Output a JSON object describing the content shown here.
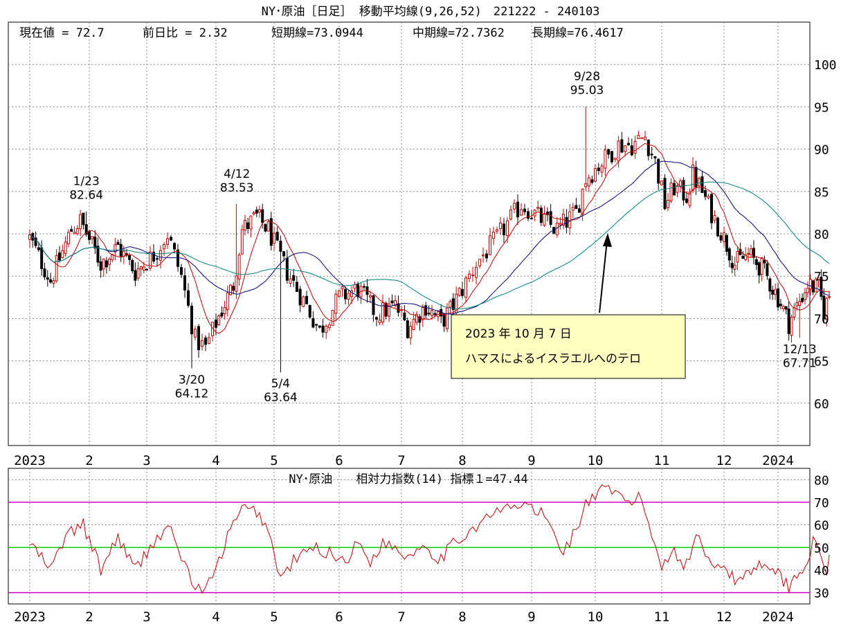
{
  "chart_data": [
    {
      "type": "candlestick",
      "title": "NY･原油［日足］ 移動平均線(9,26,52)　221222 - 240103",
      "info": {
        "current": "現在値 = 72.7",
        "change": "前日比 = 2.32",
        "short": "短期線=73.0944",
        "mid": "中期線=72.7362",
        "long": "長期線=76.4617"
      },
      "y_ticks": [
        100,
        95,
        90,
        85,
        80,
        75,
        70,
        65,
        60
      ],
      "ylim": [
        55,
        105
      ],
      "x_labels": [
        "2023",
        "2",
        "3",
        "4",
        "5",
        "6",
        "7",
        "8",
        "9",
        "10",
        "11",
        "12",
        "2024"
      ],
      "price_anchors": [
        {
          "month": 0.0,
          "close": 79.5
        },
        {
          "month": 0.35,
          "close": 74.5
        },
        {
          "month": 0.7,
          "close": 80.5
        },
        {
          "month": 0.85,
          "close": 81.5
        },
        {
          "month": 1.2,
          "close": 76.5
        },
        {
          "month": 1.5,
          "close": 78.5
        },
        {
          "month": 1.8,
          "close": 75.5
        },
        {
          "month": 2.1,
          "close": 77.5
        },
        {
          "month": 2.3,
          "close": 80.0
        },
        {
          "month": 2.5,
          "close": 75.0
        },
        {
          "month": 2.7,
          "close": 67.5
        },
        {
          "month": 2.85,
          "close": 66.5
        },
        {
          "month": 3.0,
          "close": 69.5
        },
        {
          "month": 3.3,
          "close": 74.0
        },
        {
          "month": 3.45,
          "close": 80.5
        },
        {
          "month": 3.7,
          "close": 82.0
        },
        {
          "month": 3.9,
          "close": 80.5
        },
        {
          "month": 4.2,
          "close": 75.5
        },
        {
          "month": 4.5,
          "close": 71.5
        },
        {
          "month": 4.7,
          "close": 68.5
        },
        {
          "month": 5.0,
          "close": 72.5
        },
        {
          "month": 5.3,
          "close": 73.5
        },
        {
          "month": 5.6,
          "close": 70.5
        },
        {
          "month": 5.9,
          "close": 71.5
        },
        {
          "month": 6.1,
          "close": 69.0
        },
        {
          "month": 6.4,
          "close": 71.5
        },
        {
          "month": 6.65,
          "close": 69.5
        },
        {
          "month": 6.8,
          "close": 71.0
        },
        {
          "month": 7.0,
          "close": 73.5
        },
        {
          "month": 7.2,
          "close": 76.5
        },
        {
          "month": 7.5,
          "close": 79.5
        },
        {
          "month": 7.85,
          "close": 83.5
        },
        {
          "month": 8.1,
          "close": 82.0
        },
        {
          "month": 8.4,
          "close": 80.5
        },
        {
          "month": 8.7,
          "close": 82.5
        },
        {
          "month": 8.85,
          "close": 86.5
        },
        {
          "month": 9.1,
          "close": 88.5
        },
        {
          "month": 9.35,
          "close": 90.5
        },
        {
          "month": 9.55,
          "close": 90.5
        },
        {
          "month": 9.75,
          "close": 91.5
        },
        {
          "month": 9.9,
          "close": 88.5
        },
        {
          "month": 10.05,
          "close": 83.5
        },
        {
          "month": 10.2,
          "close": 85.5
        },
        {
          "month": 10.4,
          "close": 84.5
        },
        {
          "month": 10.5,
          "close": 87.0
        },
        {
          "month": 10.65,
          "close": 85.0
        },
        {
          "month": 10.8,
          "close": 82.5
        },
        {
          "month": 11.0,
          "close": 79.5
        },
        {
          "month": 11.2,
          "close": 76.5
        },
        {
          "month": 11.45,
          "close": 77.5
        },
        {
          "month": 11.7,
          "close": 76.0
        },
        {
          "month": 12.0,
          "close": 72.5
        },
        {
          "month": 12.2,
          "close": 69.5
        },
        {
          "month": 12.35,
          "close": 71.5
        },
        {
          "month": 12.55,
          "close": 74.0
        },
        {
          "month": 12.75,
          "close": 73.5
        },
        {
          "month": 12.85,
          "close": 71.0
        },
        {
          "month": 12.95,
          "close": 72.7
        }
      ],
      "moving_averages": [
        {
          "name": "短期線",
          "period": 9,
          "color": "#cc0000"
        },
        {
          "name": "中期線",
          "period": 26,
          "color": "#000080"
        },
        {
          "name": "長期線",
          "period": 52,
          "color": "#008080"
        }
      ],
      "annotations": [
        {
          "date": "1/23",
          "value": "82.64",
          "month": 0.95,
          "price": 82.64,
          "pos": "above"
        },
        {
          "date": "4/12",
          "value": "83.53",
          "month": 3.36,
          "price": 83.53,
          "pos": "above"
        },
        {
          "date": "9/28",
          "value": "95.03",
          "month": 8.87,
          "price": 95.03,
          "pos": "above"
        },
        {
          "date": "3/20",
          "value": "64.12",
          "month": 2.65,
          "price": 64.12,
          "pos": "below"
        },
        {
          "date": "5/4",
          "value": "63.64",
          "month": 4.1,
          "price": 63.64,
          "pos": "below"
        },
        {
          "date": "12/13",
          "value": "67.71",
          "month": 12.4,
          "price": 67.71,
          "pos": "below"
        }
      ],
      "callout": {
        "line1": "2023 年 10 月 7 日",
        "line2": "ハマスによるイスラエルへのテロ",
        "bg": "#ffffc0"
      },
      "colors": {
        "up": "#cc0000",
        "down": "#000000"
      }
    },
    {
      "type": "line",
      "title": "NY･原油　　相対力指数(14) 指標１=47.44",
      "y_ticks": [
        80,
        70,
        60,
        50,
        40,
        30
      ],
      "ylim": [
        25,
        85
      ],
      "reference_lines": [
        {
          "value": 70,
          "color": "#cc00cc"
        },
        {
          "value": 50,
          "color": "#00cc00"
        },
        {
          "value": 30,
          "color": "#cc00cc"
        }
      ],
      "x_labels": [
        "2023",
        "2",
        "3",
        "4",
        "5",
        "6",
        "7",
        "8",
        "9",
        "10",
        "11",
        "12",
        "2024"
      ],
      "series_color": "#cc0000",
      "rsi_anchors": [
        {
          "month": 0.0,
          "value": 52
        },
        {
          "month": 0.35,
          "value": 40
        },
        {
          "month": 0.6,
          "value": 55
        },
        {
          "month": 0.9,
          "value": 60
        },
        {
          "month": 1.2,
          "value": 40
        },
        {
          "month": 1.5,
          "value": 55
        },
        {
          "month": 1.8,
          "value": 40
        },
        {
          "month": 2.1,
          "value": 52
        },
        {
          "month": 2.3,
          "value": 60
        },
        {
          "month": 2.5,
          "value": 46
        },
        {
          "month": 2.7,
          "value": 32
        },
        {
          "month": 2.85,
          "value": 31
        },
        {
          "month": 3.0,
          "value": 40
        },
        {
          "month": 3.2,
          "value": 55
        },
        {
          "month": 3.45,
          "value": 67
        },
        {
          "month": 3.7,
          "value": 66
        },
        {
          "month": 3.9,
          "value": 58
        },
        {
          "month": 4.1,
          "value": 36
        },
        {
          "month": 4.3,
          "value": 44
        },
        {
          "month": 4.6,
          "value": 50
        },
        {
          "month": 4.9,
          "value": 47
        },
        {
          "month": 5.1,
          "value": 44
        },
        {
          "month": 5.3,
          "value": 52
        },
        {
          "month": 5.5,
          "value": 44
        },
        {
          "month": 5.7,
          "value": 52
        },
        {
          "month": 5.9,
          "value": 50
        },
        {
          "month": 6.1,
          "value": 46
        },
        {
          "month": 6.4,
          "value": 52
        },
        {
          "month": 6.6,
          "value": 44
        },
        {
          "month": 6.8,
          "value": 50
        },
        {
          "month": 7.0,
          "value": 55
        },
        {
          "month": 7.3,
          "value": 62
        },
        {
          "month": 7.6,
          "value": 67
        },
        {
          "month": 7.9,
          "value": 69
        },
        {
          "month": 8.2,
          "value": 64
        },
        {
          "month": 8.5,
          "value": 48
        },
        {
          "month": 8.7,
          "value": 58
        },
        {
          "month": 8.85,
          "value": 69
        },
        {
          "month": 9.1,
          "value": 75
        },
        {
          "month": 9.3,
          "value": 74
        },
        {
          "month": 9.5,
          "value": 70
        },
        {
          "month": 9.7,
          "value": 72
        },
        {
          "month": 9.85,
          "value": 55
        },
        {
          "month": 10.0,
          "value": 42
        },
        {
          "month": 10.2,
          "value": 50
        },
        {
          "month": 10.35,
          "value": 40
        },
        {
          "month": 10.55,
          "value": 55
        },
        {
          "month": 10.75,
          "value": 45
        },
        {
          "month": 11.0,
          "value": 42
        },
        {
          "month": 11.2,
          "value": 35
        },
        {
          "month": 11.5,
          "value": 40
        },
        {
          "month": 11.8,
          "value": 44
        },
        {
          "month": 12.0,
          "value": 38
        },
        {
          "month": 12.2,
          "value": 33
        },
        {
          "month": 12.45,
          "value": 40
        },
        {
          "month": 12.65,
          "value": 52
        },
        {
          "month": 12.8,
          "value": 45
        },
        {
          "month": 12.9,
          "value": 40
        },
        {
          "month": 12.95,
          "value": 47.44
        }
      ]
    }
  ]
}
